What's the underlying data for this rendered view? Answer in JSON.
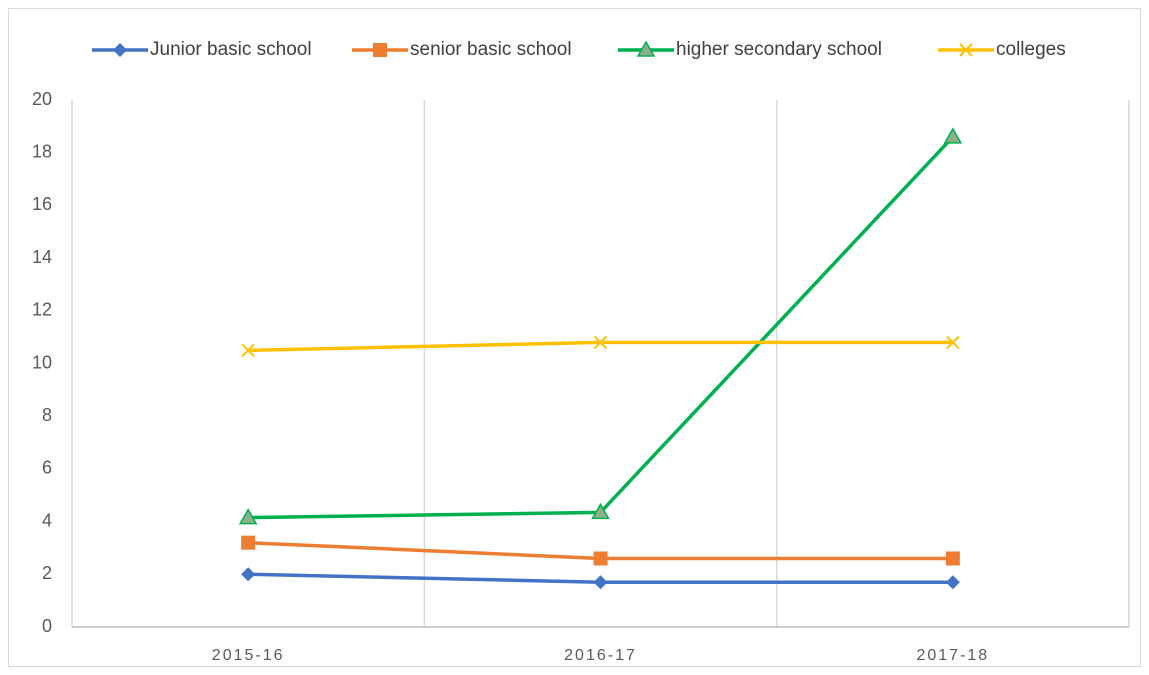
{
  "chart_data": {
    "type": "line",
    "categories": [
      "2015-16",
      "2016-17",
      "2017-18"
    ],
    "series": [
      {
        "name": "Junior basic school",
        "color": "#4472c4",
        "marker": "diamond",
        "values": [
          2.0,
          1.7,
          1.7
        ]
      },
      {
        "name": "senior basic school",
        "color": "#ed7d31",
        "marker": "square",
        "values": [
          3.2,
          2.6,
          2.6
        ]
      },
      {
        "name": "higher secondary school",
        "color": "#00b050",
        "marker": "triangle",
        "values": [
          4.15,
          4.35,
          18.6
        ]
      },
      {
        "name": "colleges",
        "color": "#ffc000",
        "marker": "x",
        "values": [
          10.5,
          10.8,
          10.8
        ]
      }
    ],
    "ylim": [
      0,
      20
    ],
    "yticks": [
      0,
      2,
      4,
      6,
      8,
      10,
      12,
      14,
      16,
      18,
      20
    ],
    "legend": "top"
  }
}
